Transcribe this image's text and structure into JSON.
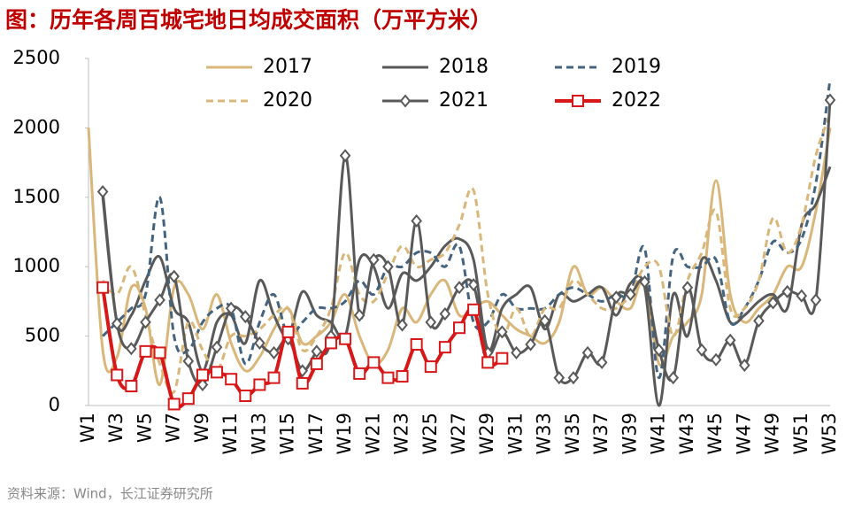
{
  "chart_data": {
    "type": "line",
    "title": "图：历年各周百城宅地日均成交面积（万平方米）",
    "source": "资料来源：Wind，长江证券研究所",
    "categories": [
      "W1",
      null,
      "W3",
      null,
      "W5",
      null,
      "W7",
      null,
      "W9",
      null,
      "W11",
      null,
      "W13",
      null,
      "W15",
      null,
      "W17",
      null,
      "W19",
      null,
      "W21",
      null,
      "W23",
      null,
      "W25",
      null,
      "W27",
      null,
      "W29",
      null,
      "W31",
      null,
      "W33",
      null,
      "W35",
      null,
      "W37",
      null,
      "W39",
      null,
      "W41",
      null,
      "W43",
      null,
      "W45",
      null,
      "W47",
      null,
      "W49",
      null,
      "W51",
      null,
      "W53"
    ],
    "ylim": [
      0,
      2500
    ],
    "yticks": [
      0,
      500,
      1000,
      1500,
      2000,
      2500
    ],
    "grid": false,
    "series": [
      {
        "name": "2017",
        "color": "#d9b77a",
        "dash": false,
        "marker": null,
        "width": 3,
        "values": [
          2000,
          400,
          350,
          850,
          700,
          150,
          850,
          800,
          550,
          800,
          450,
          250,
          350,
          550,
          700,
          450,
          500,
          600,
          800,
          500,
          300,
          400,
          700,
          600,
          800,
          900,
          650,
          700,
          750,
          650,
          550,
          500,
          450,
          600,
          1000,
          800,
          850,
          750,
          700,
          900,
          300,
          500,
          600,
          800,
          1620,
          800,
          600,
          700,
          800,
          1000,
          1000,
          1400,
          2000
        ]
      },
      {
        "name": "2018",
        "color": "#595959",
        "dash": false,
        "marker": null,
        "width": 3,
        "values": [
          null,
          1500,
          600,
          650,
          900,
          1070,
          700,
          600,
          250,
          600,
          650,
          450,
          900,
          650,
          500,
          820,
          650,
          600,
          500,
          1050,
          1000,
          700,
          950,
          900,
          1000,
          1150,
          1200,
          1050,
          400,
          700,
          800,
          850,
          550,
          800,
          750,
          800,
          850,
          650,
          880,
          850,
          0,
          800,
          500,
          1050,
          900,
          600,
          650,
          750,
          800,
          700,
          1300,
          1450,
          1720
        ]
      },
      {
        "name": "2019",
        "color": "#44637e",
        "dash": true,
        "marker": null,
        "width": 3,
        "values": [
          null,
          500,
          600,
          700,
          800,
          1500,
          500,
          400,
          600,
          700,
          700,
          300,
          600,
          800,
          500,
          600,
          700,
          700,
          750,
          900,
          800,
          1000,
          1000,
          1100,
          1100,
          1000,
          1150,
          600,
          600,
          800,
          700,
          700,
          700,
          800,
          850,
          800,
          750,
          800,
          800,
          1130,
          200,
          1080,
          1000,
          1000,
          1050,
          600,
          700,
          900,
          1180,
          1100,
          1200,
          1600,
          2350
        ]
      },
      {
        "name": "2020",
        "color": "#d9b77a",
        "dash": true,
        "marker": null,
        "width": 3,
        "values": [
          null,
          900,
          800,
          1000,
          650,
          300,
          100,
          600,
          400,
          250,
          500,
          500,
          550,
          650,
          700,
          400,
          500,
          700,
          1100,
          800,
          750,
          950,
          1150,
          1000,
          1050,
          1100,
          1300,
          1550,
          800,
          500,
          700,
          500,
          700,
          700,
          900,
          800,
          700,
          700,
          800,
          1000,
          1000,
          500,
          900,
          1100,
          1400,
          700,
          700,
          900,
          1350,
          1100,
          1300,
          1800,
          2100
        ]
      },
      {
        "name": "2021",
        "color": "#595959",
        "dash": false,
        "marker": "diamond",
        "width": 3,
        "values": [
          null,
          1540,
          590,
          410,
          600,
          760,
          930,
          320,
          150,
          420,
          700,
          640,
          450,
          380,
          480,
          250,
          390,
          500,
          1800,
          650,
          1050,
          1000,
          580,
          1330,
          600,
          660,
          850,
          870,
          380,
          530,
          380,
          440,
          610,
          200,
          200,
          380,
          310,
          780,
          800,
          890,
          400,
          200,
          850,
          400,
          330,
          470,
          290,
          610,
          740,
          820,
          790,
          760,
          2200
        ]
      },
      {
        "name": "2022",
        "color": "#d71718",
        "dash": false,
        "marker": "square",
        "width": 4,
        "values": [
          null,
          850,
          220,
          140,
          390,
          380,
          10,
          50,
          220,
          240,
          190,
          70,
          150,
          200,
          530,
          160,
          300,
          450,
          480,
          230,
          310,
          200,
          210,
          440,
          280,
          420,
          560,
          690,
          310,
          340,
          null,
          null,
          null,
          null,
          null,
          null,
          null,
          null,
          null,
          null,
          null,
          null,
          null,
          null,
          null,
          null,
          null,
          null,
          null,
          null,
          null,
          null,
          null
        ]
      }
    ]
  }
}
